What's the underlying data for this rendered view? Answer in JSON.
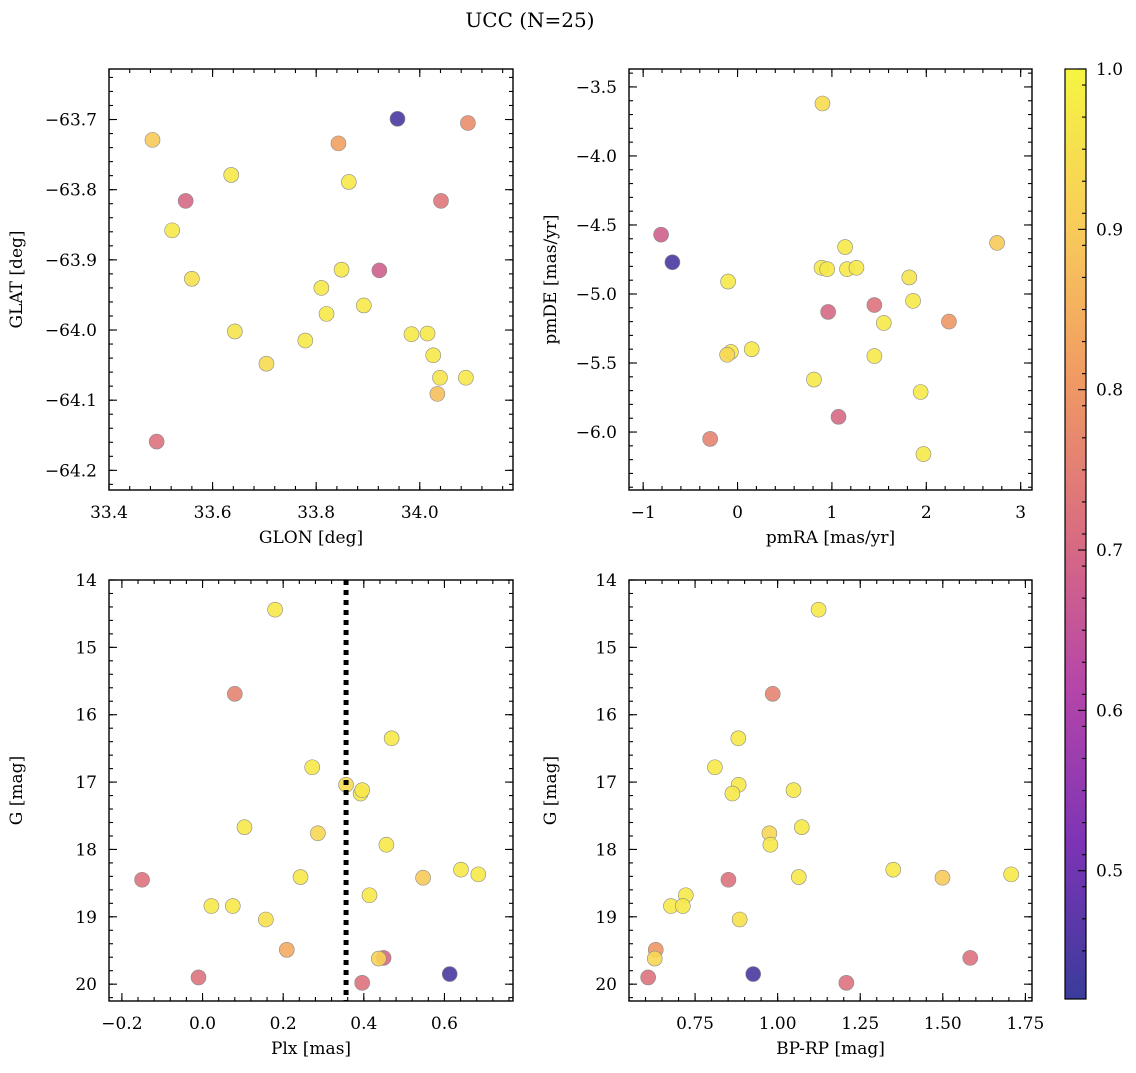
{
  "figure": {
    "suptitle": "UCC (N=25)"
  },
  "colorbar": {
    "range": [
      0.42,
      1.0
    ],
    "ticks": [
      0.5,
      0.6,
      0.7,
      0.8,
      0.9,
      1.0
    ],
    "tick_labels": [
      "0.5",
      "0.6",
      "0.7",
      "0.8",
      "0.9",
      "1.0"
    ],
    "colormap": "plasma",
    "stops": [
      "#3a3c9b",
      "#7c34b5",
      "#b545a9",
      "#d96d80",
      "#f09a63",
      "#f8cc5a",
      "#f5f542"
    ]
  },
  "chart_data": [
    {
      "type": "scatter",
      "xlabel": "GLON [deg]",
      "ylabel": "GLAT [deg]",
      "xlim": [
        33.4,
        34.18
      ],
      "ylim": [
        -64.228,
        -63.628
      ],
      "y_inverted": false,
      "xticks": [
        33.4,
        33.6,
        33.8,
        34.0
      ],
      "xtick_labels": [
        "33.4",
        "33.6",
        "33.8",
        "34.0"
      ],
      "yticks": [
        -63.7,
        -63.8,
        -63.9,
        -64.0,
        -64.1,
        -64.2
      ],
      "ytick_labels": [
        "−63.7",
        "−63.8",
        "−63.9",
        "−64.0",
        "−64.1",
        "−64.2"
      ],
      "points": [
        {
          "x": 33.957,
          "y": -63.699,
          "p": 0.44
        },
        {
          "x": 34.093,
          "y": -63.705,
          "p": 0.78
        },
        {
          "x": 33.484,
          "y": -63.729,
          "p": 0.9
        },
        {
          "x": 33.843,
          "y": -63.734,
          "p": 0.82
        },
        {
          "x": 33.636,
          "y": -63.779,
          "p": 0.97
        },
        {
          "x": 33.863,
          "y": -63.789,
          "p": 0.97
        },
        {
          "x": 33.548,
          "y": -63.816,
          "p": 0.7
        },
        {
          "x": 34.041,
          "y": -63.816,
          "p": 0.73
        },
        {
          "x": 33.522,
          "y": -63.858,
          "p": 0.97
        },
        {
          "x": 33.849,
          "y": -63.914,
          "p": 0.97
        },
        {
          "x": 33.922,
          "y": -63.915,
          "p": 0.68
        },
        {
          "x": 33.56,
          "y": -63.927,
          "p": 0.95
        },
        {
          "x": 33.81,
          "y": -63.94,
          "p": 0.97
        },
        {
          "x": 33.892,
          "y": -63.965,
          "p": 0.97
        },
        {
          "x": 33.82,
          "y": -63.977,
          "p": 0.97
        },
        {
          "x": 33.643,
          "y": -64.002,
          "p": 0.96
        },
        {
          "x": 33.984,
          "y": -64.006,
          "p": 0.97
        },
        {
          "x": 34.015,
          "y": -64.005,
          "p": 0.97
        },
        {
          "x": 33.779,
          "y": -64.015,
          "p": 0.97
        },
        {
          "x": 34.026,
          "y": -64.036,
          "p": 0.97
        },
        {
          "x": 33.704,
          "y": -64.048,
          "p": 0.94
        },
        {
          "x": 34.039,
          "y": -64.068,
          "p": 0.96
        },
        {
          "x": 34.089,
          "y": -64.068,
          "p": 0.97
        },
        {
          "x": 34.034,
          "y": -64.091,
          "p": 0.88
        },
        {
          "x": 33.492,
          "y": -64.159,
          "p": 0.72
        }
      ]
    },
    {
      "type": "scatter",
      "xlabel": "pmRA [mas/yr]",
      "ylabel": "pmDE [mas/yr]",
      "xlim": [
        -1.15,
        3.12
      ],
      "ylim": [
        -6.42,
        -3.37
      ],
      "y_inverted": false,
      "xticks": [
        -1,
        0,
        1,
        2,
        3
      ],
      "xtick_labels": [
        "−1",
        "0",
        "1",
        "2",
        "3"
      ],
      "yticks": [
        -3.5,
        -4.0,
        -4.5,
        -5.0,
        -5.5,
        -6.0
      ],
      "ytick_labels": [
        "−3.5",
        "−4.0",
        "−4.5",
        "−5.0",
        "−5.5",
        "−6.0"
      ],
      "points": [
        {
          "x": 0.9,
          "y": -3.62,
          "p": 0.94
        },
        {
          "x": -0.81,
          "y": -4.57,
          "p": 0.68
        },
        {
          "x": 2.75,
          "y": -4.63,
          "p": 0.9
        },
        {
          "x": 1.14,
          "y": -4.66,
          "p": 0.97
        },
        {
          "x": -0.69,
          "y": -4.77,
          "p": 0.44
        },
        {
          "x": 0.89,
          "y": -4.81,
          "p": 0.97
        },
        {
          "x": 0.95,
          "y": -4.82,
          "p": 0.97
        },
        {
          "x": 1.16,
          "y": -4.82,
          "p": 0.97
        },
        {
          "x": 1.26,
          "y": -4.81,
          "p": 0.97
        },
        {
          "x": 1.82,
          "y": -4.88,
          "p": 0.96
        },
        {
          "x": -0.1,
          "y": -4.91,
          "p": 0.97
        },
        {
          "x": 1.86,
          "y": -5.05,
          "p": 0.97
        },
        {
          "x": 1.45,
          "y": -5.08,
          "p": 0.72
        },
        {
          "x": 0.96,
          "y": -5.13,
          "p": 0.7
        },
        {
          "x": 2.24,
          "y": -5.2,
          "p": 0.8
        },
        {
          "x": 1.55,
          "y": -5.21,
          "p": 0.97
        },
        {
          "x": 0.15,
          "y": -5.4,
          "p": 0.97
        },
        {
          "x": -0.07,
          "y": -5.42,
          "p": 0.97
        },
        {
          "x": -0.11,
          "y": -5.44,
          "p": 0.93
        },
        {
          "x": 1.45,
          "y": -5.45,
          "p": 0.97
        },
        {
          "x": 0.81,
          "y": -5.62,
          "p": 0.97
        },
        {
          "x": 1.94,
          "y": -5.71,
          "p": 0.97
        },
        {
          "x": 1.07,
          "y": -5.89,
          "p": 0.7
        },
        {
          "x": -0.29,
          "y": -6.05,
          "p": 0.76
        },
        {
          "x": 1.97,
          "y": -6.16,
          "p": 0.97
        }
      ]
    },
    {
      "type": "scatter",
      "xlabel": "Plx [mas]",
      "ylabel": "G [mag]",
      "xlim": [
        -0.232,
        0.77
      ],
      "ylim": [
        14.0,
        20.25
      ],
      "y_inverted": true,
      "xticks": [
        -0.2,
        0.0,
        0.2,
        0.4,
        0.6
      ],
      "xtick_labels": [
        "−0.2",
        "0.0",
        "0.2",
        "0.4",
        "0.6"
      ],
      "yticks": [
        14,
        15,
        16,
        17,
        18,
        19,
        20
      ],
      "ytick_labels": [
        "14",
        "15",
        "16",
        "17",
        "18",
        "19",
        "20"
      ],
      "vline": {
        "x": 0.356,
        "style": "dotted"
      },
      "points": [
        {
          "x": 0.18,
          "y": 14.44,
          "p": 0.97
        },
        {
          "x": 0.08,
          "y": 15.69,
          "p": 0.76
        },
        {
          "x": 0.469,
          "y": 16.35,
          "p": 0.97
        },
        {
          "x": 0.272,
          "y": 16.78,
          "p": 0.97
        },
        {
          "x": 0.356,
          "y": 17.04,
          "p": 0.94
        },
        {
          "x": 0.392,
          "y": 17.17,
          "p": 0.97
        },
        {
          "x": 0.396,
          "y": 17.12,
          "p": 0.97
        },
        {
          "x": 0.104,
          "y": 17.67,
          "p": 0.97
        },
        {
          "x": 0.286,
          "y": 17.76,
          "p": 0.93
        },
        {
          "x": 0.456,
          "y": 17.93,
          "p": 0.97
        },
        {
          "x": 0.641,
          "y": 18.3,
          "p": 0.97
        },
        {
          "x": 0.684,
          "y": 18.37,
          "p": 0.97
        },
        {
          "x": 0.243,
          "y": 18.41,
          "p": 0.97
        },
        {
          "x": 0.547,
          "y": 18.42,
          "p": 0.9
        },
        {
          "x": -0.15,
          "y": 18.45,
          "p": 0.72
        },
        {
          "x": 0.414,
          "y": 18.68,
          "p": 0.97
        },
        {
          "x": 0.022,
          "y": 18.84,
          "p": 0.97
        },
        {
          "x": 0.075,
          "y": 18.84,
          "p": 0.97
        },
        {
          "x": 0.157,
          "y": 19.04,
          "p": 0.95
        },
        {
          "x": 0.209,
          "y": 19.49,
          "p": 0.84
        },
        {
          "x": 0.449,
          "y": 19.61,
          "p": 0.7
        },
        {
          "x": 0.437,
          "y": 19.62,
          "p": 0.92
        },
        {
          "x": 0.613,
          "y": 19.85,
          "p": 0.44
        },
        {
          "x": -0.01,
          "y": 19.9,
          "p": 0.72
        },
        {
          "x": 0.396,
          "y": 19.98,
          "p": 0.72
        }
      ]
    },
    {
      "type": "scatter",
      "xlabel": "BP-RP [mag]",
      "ylabel": "G [mag]",
      "xlim": [
        0.55,
        1.77
      ],
      "ylim": [
        14.0,
        20.25
      ],
      "y_inverted": true,
      "xticks": [
        0.75,
        1.0,
        1.25,
        1.5,
        1.75
      ],
      "xtick_labels": [
        "0.75",
        "1.00",
        "1.25",
        "1.50",
        "1.75"
      ],
      "yticks": [
        14,
        15,
        16,
        17,
        18,
        19,
        20
      ],
      "ytick_labels": [
        "14",
        "15",
        "16",
        "17",
        "18",
        "19",
        "20"
      ],
      "points": [
        {
          "x": 1.124,
          "y": 14.44,
          "p": 0.97
        },
        {
          "x": 0.985,
          "y": 15.69,
          "p": 0.76
        },
        {
          "x": 0.881,
          "y": 16.35,
          "p": 0.97
        },
        {
          "x": 0.81,
          "y": 16.78,
          "p": 0.97
        },
        {
          "x": 0.882,
          "y": 17.04,
          "p": 0.97
        },
        {
          "x": 0.863,
          "y": 17.17,
          "p": 0.97
        },
        {
          "x": 1.048,
          "y": 17.12,
          "p": 0.97
        },
        {
          "x": 1.073,
          "y": 17.67,
          "p": 0.97
        },
        {
          "x": 0.975,
          "y": 17.76,
          "p": 0.93
        },
        {
          "x": 0.978,
          "y": 17.93,
          "p": 0.97
        },
        {
          "x": 1.35,
          "y": 18.3,
          "p": 0.97
        },
        {
          "x": 1.707,
          "y": 18.37,
          "p": 0.97
        },
        {
          "x": 1.064,
          "y": 18.41,
          "p": 0.97
        },
        {
          "x": 1.499,
          "y": 18.42,
          "p": 0.9
        },
        {
          "x": 0.851,
          "y": 18.45,
          "p": 0.72
        },
        {
          "x": 0.722,
          "y": 18.68,
          "p": 0.97
        },
        {
          "x": 0.677,
          "y": 18.84,
          "p": 0.97
        },
        {
          "x": 0.713,
          "y": 18.84,
          "p": 0.97
        },
        {
          "x": 0.885,
          "y": 19.04,
          "p": 0.95
        },
        {
          "x": 0.631,
          "y": 19.49,
          "p": 0.8
        },
        {
          "x": 0.628,
          "y": 19.62,
          "p": 0.93
        },
        {
          "x": 1.583,
          "y": 19.61,
          "p": 0.72
        },
        {
          "x": 0.926,
          "y": 19.85,
          "p": 0.44
        },
        {
          "x": 0.608,
          "y": 19.9,
          "p": 0.72
        },
        {
          "x": 1.208,
          "y": 19.98,
          "p": 0.72
        }
      ]
    }
  ]
}
